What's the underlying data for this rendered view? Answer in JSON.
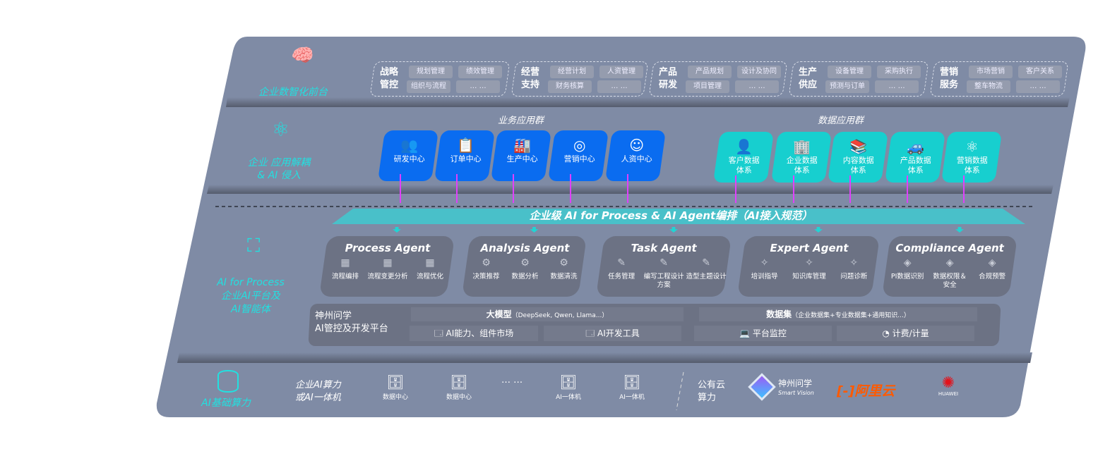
{
  "colors": {
    "panel": "#7f8ba5",
    "band": "#5c6375",
    "blue": "#0a6cf0",
    "teal": "#17cfcf",
    "cyan_text": "#22e0e0",
    "arrow": "#e040fb"
  },
  "tiers": {
    "front": {
      "label": "企业数智化前台",
      "icon": "brain-icon"
    },
    "apps": {
      "label": "企业 应用解耦\n& AI 侵入",
      "icon": "molecule-icon"
    },
    "ai": {
      "label": "AI for Process\n企业AI平台及\nAI智能体",
      "icon": "scan-user-icon"
    },
    "compute": {
      "label": "AI基础算力",
      "icon": "database-icon"
    }
  },
  "front_groups": [
    {
      "title": "战略\n管控",
      "items": [
        "规划管理",
        "绩效管理",
        "组织与流程",
        "… …"
      ]
    },
    {
      "title": "经营\n支持",
      "items": [
        "经营计划",
        "人资管理",
        "财务核算",
        "… …"
      ]
    },
    {
      "title": "产品\n研发",
      "items": [
        "产品规划",
        "设计及协同",
        "项目管理",
        "… …"
      ]
    },
    {
      "title": "生产\n供应",
      "items": [
        "设备管理",
        "采购执行",
        "预测与订单",
        "… …"
      ]
    },
    {
      "title": "营销\n服务",
      "items": [
        "市场营销",
        "客户关系",
        "整车物流",
        "… …"
      ]
    }
  ],
  "business_apps": {
    "title": "业务应用群",
    "items": [
      {
        "label": "研发中心",
        "icon": "users-icon"
      },
      {
        "label": "订单中心",
        "icon": "clipboard-icon"
      },
      {
        "label": "生产中心",
        "icon": "factory-icon"
      },
      {
        "label": "营销中心",
        "icon": "target-icon"
      },
      {
        "label": "人资中心",
        "icon": "person-icon"
      }
    ]
  },
  "data_apps": {
    "title": "数据应用群",
    "items": [
      {
        "label": "客户数据\n体系",
        "icon": "user-icon"
      },
      {
        "label": "企业数据\n体系",
        "icon": "building-icon"
      },
      {
        "label": "内容数据\n体系",
        "icon": "books-icon"
      },
      {
        "label": "产品数据\n体系",
        "icon": "car-icon"
      },
      {
        "label": "营销数据\n体系",
        "icon": "atom-icon"
      }
    ]
  },
  "banner": "企业级 AI for Process & AI Agent编排（AI接入规范）",
  "agents": [
    {
      "title": "Process Agent",
      "items": [
        "流程编排",
        "流程变更分析",
        "流程优化"
      ]
    },
    {
      "title": "Analysis Agent",
      "items": [
        "决策推荐",
        "数据分析",
        "数据清洗"
      ]
    },
    {
      "title": "Task Agent",
      "items": [
        "任务管理",
        "编写工程设计方案",
        "造型主题设计"
      ]
    },
    {
      "title": "Expert Agent",
      "items": [
        "培训指导",
        "知识库管理",
        "问题诊断"
      ]
    },
    {
      "title": "Compliance Agent",
      "items": [
        "PI数据识别",
        "数据权限＆\n安全",
        "合规预警"
      ]
    }
  ],
  "platform": {
    "title": "神州问学\nAI管控及开发平台",
    "llm": {
      "label": "大模型",
      "note": "（DeepSeek, Qwen, Llama...）"
    },
    "dataset": {
      "label": "数据集",
      "note": "（企业数据集+专业数据集+通用知识...）"
    },
    "tools": [
      "AI能力、组件市场",
      "AI开发工具",
      "平台监控",
      "计费/计量"
    ]
  },
  "compute": {
    "private_label": "企业AI算力\n或AI一体机",
    "servers": [
      "数据中心",
      "数据中心",
      "AI一体机",
      "AI一体机"
    ],
    "ellipsis": "… …",
    "public_label": "公有云\n算力",
    "vendors": [
      {
        "name": "神州问学",
        "sub": "Smart Vision"
      },
      {
        "name": "阿里云"
      },
      {
        "name": "HUAWEI"
      }
    ]
  }
}
